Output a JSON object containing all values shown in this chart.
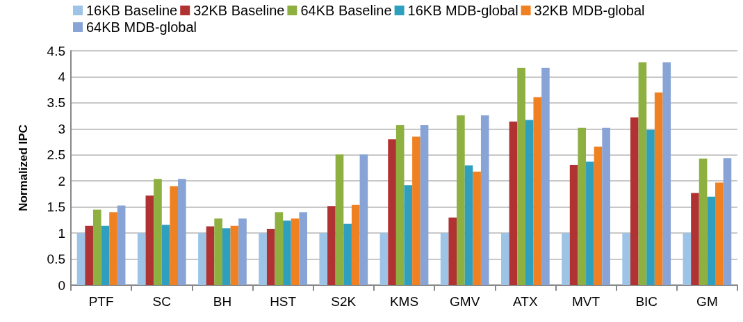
{
  "chart_data": {
    "type": "bar",
    "ylabel": "Normalized IPC",
    "categories": [
      "PTF",
      "SC",
      "BH",
      "HST",
      "S2K",
      "KMS",
      "GMV",
      "ATX",
      "MVT",
      "BIC",
      "GM"
    ],
    "series": [
      {
        "name": "16KB Baseline",
        "color": "#9dc3e6",
        "values": [
          1,
          1,
          1,
          1,
          1,
          1,
          1,
          1,
          1,
          1,
          1
        ]
      },
      {
        "name": "32KB Baseline",
        "color": "#b03232",
        "values": [
          1.14,
          1.72,
          1.13,
          1.08,
          1.52,
          2.8,
          1.3,
          3.14,
          2.31,
          3.22,
          1.77
        ]
      },
      {
        "name": "64KB Baseline",
        "color": "#8db040",
        "values": [
          1.45,
          2.04,
          1.28,
          1.4,
          2.51,
          3.07,
          3.26,
          4.17,
          3.02,
          4.28,
          2.43
        ]
      },
      {
        "name": "16KB MDB-global",
        "color": "#2e9fbf",
        "values": [
          1.14,
          1.16,
          1.09,
          1.24,
          1.18,
          1.92,
          2.3,
          3.17,
          2.37,
          2.98,
          1.7
        ]
      },
      {
        "name": "32KB MDB-global",
        "color": "#ef8122",
        "values": [
          1.4,
          1.9,
          1.14,
          1.28,
          1.54,
          2.85,
          2.18,
          3.61,
          2.66,
          3.7,
          1.97
        ]
      },
      {
        "name": "64KB MDB-global",
        "color": "#88a4d6",
        "values": [
          1.53,
          2.04,
          1.28,
          1.4,
          2.51,
          3.07,
          3.26,
          4.17,
          3.02,
          4.28,
          2.44
        ]
      }
    ],
    "ylim": [
      0,
      4.5
    ],
    "yticks": [
      0,
      0.5,
      1,
      1.5,
      2,
      2.5,
      3,
      3.5,
      4,
      4.5
    ],
    "grid": "y",
    "legend": "top"
  }
}
